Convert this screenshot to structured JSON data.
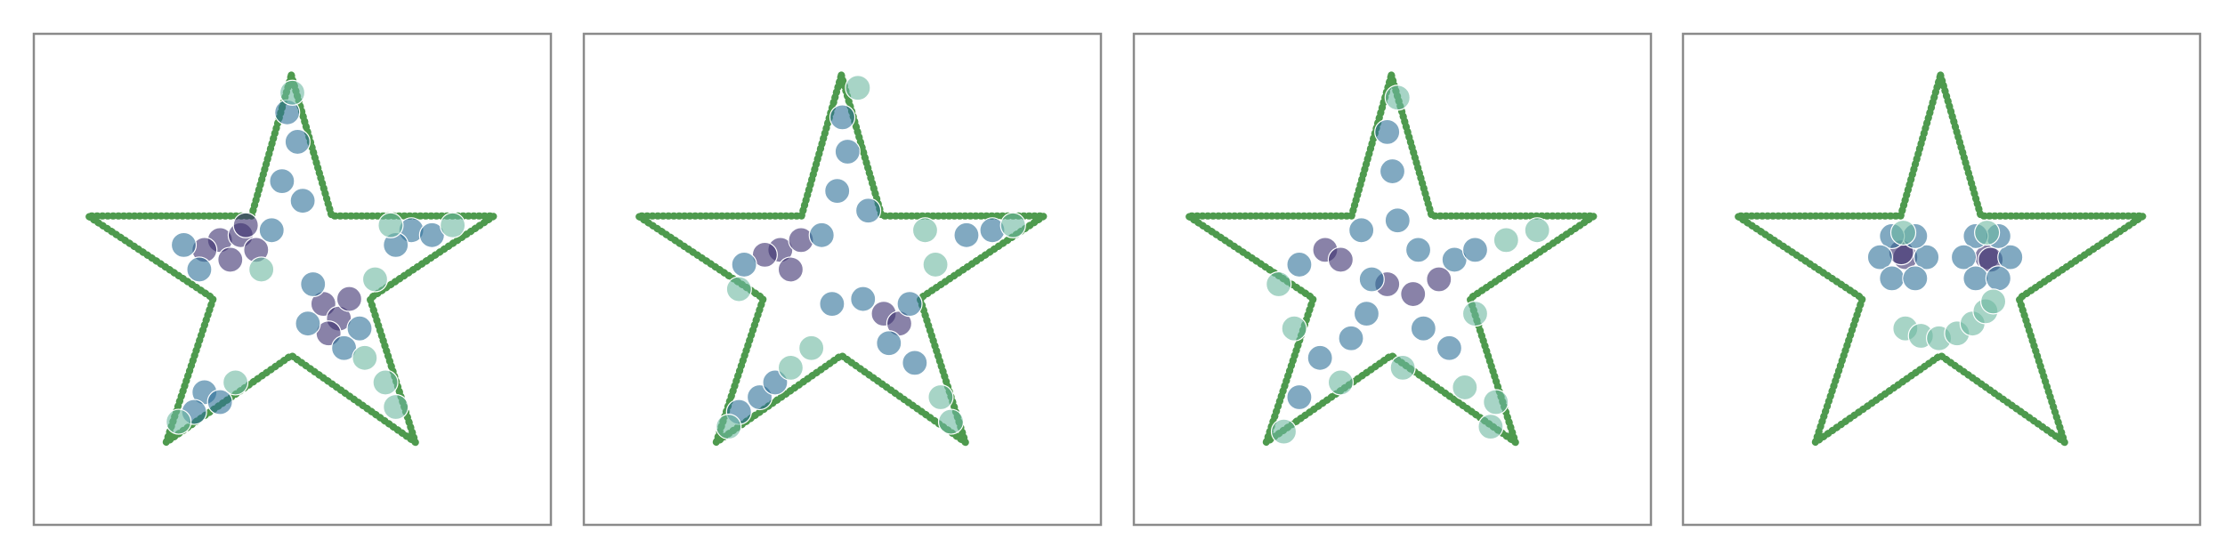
{
  "chart_data": [
    {
      "type": "scatter",
      "xlim": [
        0,
        10
      ],
      "ylim": [
        0,
        10
      ],
      "series": [
        {
          "mode": "line",
          "color": "#4e9a4e",
          "x": [
            4.98,
            5.76,
            8.9,
            6.5,
            7.38,
            4.98,
            2.56,
            3.47,
            1.05,
            4.21,
            4.98
          ],
          "values": [
            9.16,
            6.29,
            6.29,
            4.61,
            1.68,
            3.45,
            1.68,
            4.61,
            6.29,
            6.29,
            9.16
          ]
        },
        {
          "mode": "points",
          "color": "#3b2f6e",
          "x": [
            3.6,
            4.0,
            4.3,
            3.3,
            3.8,
            4.1,
            5.6,
            5.9,
            6.1,
            5.7
          ],
          "values": [
            5.8,
            5.9,
            5.6,
            5.6,
            5.4,
            6.1,
            4.5,
            4.2,
            4.6,
            3.9
          ]
        },
        {
          "mode": "points",
          "color": "#2d6f98",
          "x": [
            2.9,
            3.2,
            4.6,
            4.8,
            5.1,
            4.9,
            5.2,
            5.4,
            6.3,
            6.0,
            5.3,
            7.3,
            7.7,
            7.0,
            3.3,
            3.6,
            3.1
          ],
          "values": [
            5.7,
            5.2,
            6.0,
            7.0,
            7.8,
            8.4,
            6.6,
            4.9,
            4.0,
            3.6,
            4.1,
            6.0,
            5.9,
            5.7,
            2.7,
            2.5,
            2.3
          ]
        },
        {
          "mode": "points",
          "color": "#6db8a0",
          "x": [
            8.1,
            6.6,
            6.4,
            6.8,
            3.9,
            2.8,
            4.4,
            6.9,
            7.0,
            5.0
          ],
          "values": [
            6.1,
            5.0,
            3.4,
            2.9,
            2.9,
            2.1,
            5.2,
            6.1,
            2.4,
            8.8
          ]
        }
      ]
    },
    {
      "type": "scatter",
      "xlim": [
        0,
        10
      ],
      "ylim": [
        0,
        10
      ],
      "series": [
        {
          "mode": "line",
          "color": "#4e9a4e",
          "x": [
            4.98,
            5.76,
            8.9,
            6.5,
            7.38,
            4.98,
            2.56,
            3.47,
            1.05,
            4.21,
            4.98
          ],
          "values": [
            9.16,
            6.29,
            6.29,
            4.61,
            1.68,
            3.45,
            1.68,
            4.61,
            6.29,
            6.29,
            9.16
          ]
        },
        {
          "mode": "points",
          "color": "#3b2f6e",
          "x": [
            3.8,
            4.2,
            3.5,
            4.0,
            5.8,
            6.1
          ],
          "values": [
            5.6,
            5.8,
            5.5,
            5.2,
            4.3,
            4.1
          ]
        },
        {
          "mode": "points",
          "color": "#2d6f98",
          "x": [
            3.1,
            4.6,
            4.9,
            5.1,
            5.0,
            5.5,
            5.4,
            6.3,
            5.9,
            6.4,
            7.4,
            7.9,
            3.4,
            3.0,
            3.7,
            4.8
          ],
          "values": [
            5.3,
            5.9,
            6.8,
            7.6,
            8.3,
            6.4,
            4.6,
            4.5,
            3.7,
            3.3,
            5.9,
            6.0,
            2.6,
            2.3,
            2.9,
            4.5
          ]
        },
        {
          "mode": "points",
          "color": "#6db8a0",
          "x": [
            8.3,
            6.8,
            6.9,
            7.1,
            4.0,
            2.8,
            3.0,
            5.3,
            6.6,
            4.4
          ],
          "values": [
            6.1,
            5.3,
            2.6,
            2.1,
            3.2,
            2.0,
            4.8,
            8.9,
            6.0,
            3.6
          ]
        }
      ]
    },
    {
      "type": "scatter",
      "xlim": [
        0,
        10
      ],
      "ylim": [
        0,
        10
      ],
      "series": [
        {
          "mode": "line",
          "color": "#4e9a4e",
          "x": [
            4.98,
            5.76,
            8.9,
            6.5,
            7.38,
            4.98,
            2.56,
            3.47,
            1.05,
            4.21,
            4.98
          ],
          "values": [
            9.16,
            6.29,
            6.29,
            4.61,
            1.68,
            3.45,
            1.68,
            4.61,
            6.29,
            6.29,
            9.16
          ]
        },
        {
          "mode": "points",
          "color": "#3b2f6e",
          "x": [
            3.7,
            4.0,
            4.9,
            5.4,
            5.9
          ],
          "values": [
            5.6,
            5.4,
            4.9,
            4.7,
            5.0
          ]
        },
        {
          "mode": "points",
          "color": "#2d6f98",
          "x": [
            3.2,
            4.4,
            4.6,
            5.1,
            5.5,
            6.2,
            6.6,
            5.0,
            4.9,
            4.5,
            5.6,
            6.1,
            3.6,
            3.2,
            4.2
          ],
          "values": [
            5.3,
            6.0,
            5.0,
            6.2,
            5.6,
            5.4,
            5.6,
            7.2,
            8.0,
            4.3,
            4.0,
            3.6,
            3.4,
            2.6,
            3.8
          ]
        },
        {
          "mode": "points",
          "color": "#6db8a0",
          "x": [
            7.2,
            7.8,
            5.1,
            2.8,
            3.1,
            2.9,
            4.0,
            6.4,
            6.9,
            7.0,
            5.2,
            6.6
          ],
          "values": [
            5.8,
            6.0,
            8.7,
            4.9,
            4.0,
            1.9,
            2.9,
            2.8,
            2.0,
            2.5,
            3.2,
            4.3
          ]
        }
      ]
    },
    {
      "type": "scatter",
      "xlim": [
        0,
        10
      ],
      "ylim": [
        0,
        10
      ],
      "series": [
        {
          "mode": "line",
          "color": "#4e9a4e",
          "x": [
            4.98,
            5.76,
            8.9,
            6.5,
            7.38,
            4.98,
            2.56,
            3.47,
            1.05,
            4.21,
            4.98
          ],
          "values": [
            9.16,
            6.29,
            6.29,
            4.61,
            1.68,
            3.45,
            1.68,
            4.61,
            6.29,
            6.29,
            9.16
          ]
        },
        {
          "mode": "points",
          "color": "#3b2f6e",
          "x": [
            4.3,
            4.22,
            5.88,
            5.95
          ],
          "values": [
            5.45,
            5.55,
            5.45,
            5.4
          ]
        },
        {
          "mode": "points",
          "color": "#2d6f98",
          "x": [
            4.71,
            4.49,
            4.04,
            3.81,
            4.04,
            4.49,
            6.33,
            6.1,
            5.66,
            5.43,
            5.66,
            6.1
          ],
          "values": [
            5.45,
            5.88,
            5.88,
            5.45,
            5.02,
            5.02,
            5.45,
            5.88,
            5.88,
            5.45,
            5.02,
            5.02
          ]
        },
        {
          "mode": "points",
          "color": "#6db8a0",
          "x": [
            4.3,
            4.6,
            4.95,
            5.3,
            5.6,
            5.85,
            6.0,
            4.26,
            5.88
          ],
          "values": [
            4.0,
            3.85,
            3.8,
            3.9,
            4.1,
            4.35,
            4.55,
            5.95,
            5.95
          ]
        }
      ]
    }
  ]
}
